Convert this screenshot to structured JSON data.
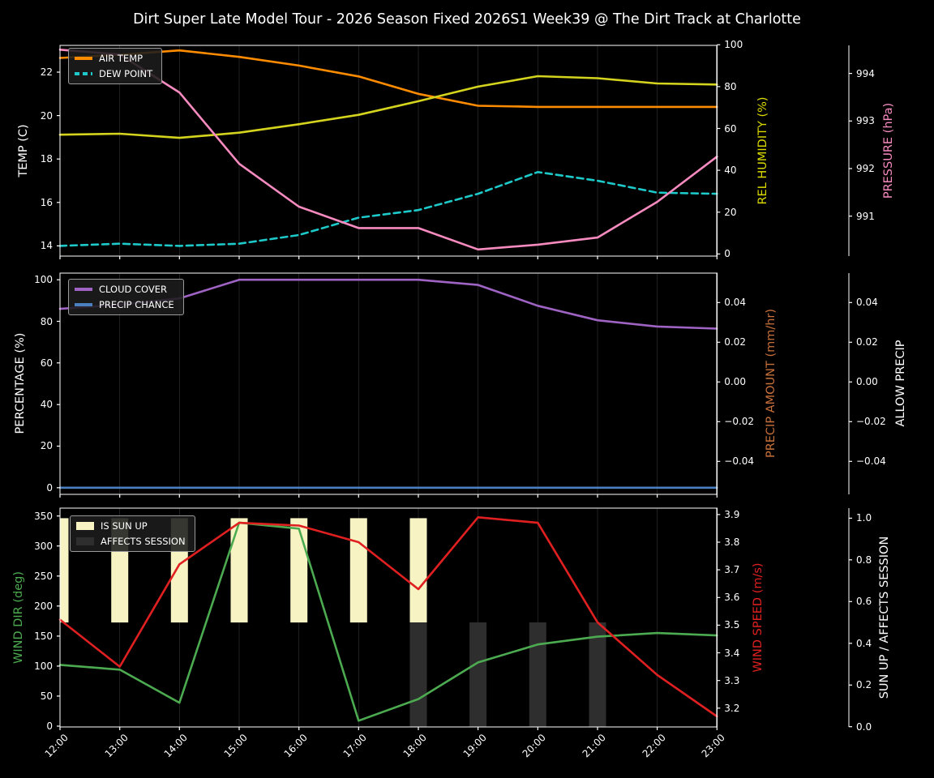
{
  "title": "Dirt Super Late Model Tour - 2026 Season Fixed 2026S1 Week39 @ The Dirt Track at Charlotte",
  "x_labels": [
    "12:00",
    "13:00",
    "14:00",
    "15:00",
    "16:00",
    "17:00",
    "18:00",
    "19:00",
    "20:00",
    "21:00",
    "22:00",
    "23:00"
  ],
  "chart_data": {
    "type": "line",
    "categories": [
      "12:00",
      "13:00",
      "14:00",
      "15:00",
      "16:00",
      "17:00",
      "18:00",
      "19:00",
      "20:00",
      "21:00",
      "22:00",
      "23:00"
    ],
    "grid": "vertical-only",
    "background": "#000000",
    "panels": [
      {
        "name": "temperature-humidity-pressure",
        "axes": {
          "left": {
            "label": "TEMP (C)",
            "color": "#ffffff",
            "ticks": [
              22,
              20,
              18,
              16,
              14
            ],
            "tick_labels": [
              "22",
              "20",
              "18",
              "16",
              "14"
            ],
            "range": [
              13.53,
              23.23
            ]
          },
          "right": {
            "label": "REL HUMIDITY (%)",
            "color": "#d9d900",
            "ticks": [
              100,
              80,
              60,
              40,
              20,
              0
            ],
            "tick_labels": [
              "100",
              "80",
              "60",
              "40",
              "20",
              "0"
            ],
            "range": [
              -1.0,
              99.7
            ]
          },
          "right2": {
            "label": "PRESSURE (hPa)",
            "color": "#f78bc0",
            "ticks": [
              994,
              993,
              992,
              991
            ],
            "tick_labels": [
              "994",
              "993",
              "992",
              "991"
            ],
            "range": [
              990.16,
              994.59
            ]
          }
        },
        "series": [
          {
            "name": "AIR TEMP",
            "axis": "left",
            "color": "#ff8c00",
            "line": "solid",
            "values": [
              22.65,
              22.8,
              23.0,
              22.7,
              22.3,
              21.8,
              21.0,
              20.45,
              20.4,
              20.4,
              20.4,
              20.4
            ]
          },
          {
            "name": "DEW POINT",
            "axis": "left",
            "color": "#1dc9c9",
            "line": "dashed",
            "values": [
              14.0,
              14.1,
              14.0,
              14.1,
              14.5,
              15.3,
              15.65,
              16.4,
              17.4,
              17.0,
              16.45,
              16.4
            ]
          },
          {
            "name": "REL HUMIDITY",
            "axis": "right",
            "color": "#d4d41f",
            "line": "solid",
            "values": [
              57,
              57.5,
              55.5,
              58,
              62,
              66.5,
              73,
              80,
              85,
              84,
              81.5,
              81
            ]
          },
          {
            "name": "PRESSURE",
            "axis": "right2",
            "color": "#f78bc0",
            "line": "solid",
            "values": [
              994.5,
              994.4,
              993.6,
              992.1,
              991.2,
              990.75,
              990.75,
              990.3,
              990.4,
              990.55,
              991.3,
              992.25
            ]
          }
        ],
        "legend": [
          {
            "label": "AIR TEMP",
            "color": "#ff8c00",
            "swatch": "line"
          },
          {
            "label": "DEW POINT",
            "color": "#1dc9c9",
            "swatch": "dash"
          }
        ]
      },
      {
        "name": "cloud-precip",
        "axes": {
          "left": {
            "label": "PERCENTAGE (%)",
            "color": "#ffffff",
            "ticks": [
              100,
              80,
              60,
              40,
              20,
              0
            ],
            "tick_labels": [
              "100",
              "80",
              "60",
              "40",
              "20",
              "0"
            ],
            "range": [
              -3.2,
              103.2
            ]
          },
          "right": {
            "label": "PRECIP AMOUNT (mm/hr)",
            "color": "#c8703a",
            "ticks": [
              0.04,
              0.02,
              0,
              -0.02,
              -0.04
            ],
            "tick_labels": [
              "0.04",
              "0.02",
              "0.00",
              "−0.02",
              "−0.04"
            ],
            "range": [
              -0.0566,
              0.0548
            ]
          },
          "right2": {
            "label": "ALLOW PRECIP",
            "color": "#ffffff",
            "ticks": [
              0.04,
              0.02,
              0,
              -0.02,
              -0.04
            ],
            "tick_labels": [
              "0.04",
              "0.02",
              "0.00",
              "−0.02",
              "−0.04"
            ],
            "range": [
              -0.0566,
              0.0548
            ]
          }
        },
        "series": [
          {
            "name": "CLOUD COVER",
            "axis": "left",
            "color": "#9f63c4",
            "line": "solid",
            "values": [
              86,
              88,
              91,
              100,
              100,
              100,
              100,
              97.5,
              87.5,
              80.5,
              77.5,
              76.5
            ]
          },
          {
            "name": "PRECIP CHANCE",
            "axis": "left",
            "color": "#4a80c0",
            "line": "solid",
            "values": [
              0,
              0,
              0,
              0,
              0,
              0,
              0,
              0,
              0,
              0,
              0,
              0
            ]
          }
        ],
        "legend": [
          {
            "label": "CLOUD COVER",
            "color": "#9f63c4",
            "swatch": "line"
          },
          {
            "label": "PRECIP CHANCE",
            "color": "#4a80c0",
            "swatch": "line"
          }
        ]
      },
      {
        "name": "wind-sun",
        "axes": {
          "left": {
            "label": "WIND DIR (deg)",
            "color": "#4cab50",
            "ticks": [
              350,
              300,
              250,
              200,
              150,
              100,
              50,
              0
            ],
            "tick_labels": [
              "350",
              "300",
              "250",
              "200",
              "150",
              "100",
              "50",
              "0"
            ],
            "range": [
              -1.4,
              363.1
            ]
          },
          "right": {
            "label": "WIND SPEED (m/s)",
            "color": "#e02020",
            "ticks": [
              3.9,
              3.8,
              3.7,
              3.6,
              3.5,
              3.4,
              3.3,
              3.2
            ],
            "tick_labels": [
              "3.9",
              "3.8",
              "3.7",
              "3.6",
              "3.5",
              "3.4",
              "3.3",
              "3.2"
            ],
            "range": [
              3.132,
              3.923
            ]
          },
          "right2": {
            "label": "SUN UP / AFFECTS SESSION",
            "color": "#ffffff",
            "ticks": [
              1.0,
              0.8,
              0.6,
              0.4,
              0.2,
              0.0
            ],
            "tick_labels": [
              "1.0",
              "0.8",
              "0.6",
              "0.4",
              "0.2",
              "0.0"
            ],
            "range": [
              -0.001,
              1.048
            ]
          }
        },
        "series": [
          {
            "name": "IS SUN UP",
            "axis": "right2",
            "type": "bar",
            "color": "#f7f3c3",
            "span": [
              0.5,
              1.0
            ],
            "values": [
              1,
              1,
              1,
              1,
              1,
              1,
              1,
              0,
              0,
              0,
              0,
              0
            ]
          },
          {
            "name": "AFFECTS SESSION",
            "axis": "right2",
            "type": "bar",
            "color": "#2e2e2e",
            "span": [
              0.0,
              0.5
            ],
            "values": [
              0,
              0,
              0,
              0,
              0,
              0,
              1,
              1,
              1,
              1,
              0,
              0
            ]
          },
          {
            "name": "WIND DIR",
            "axis": "left",
            "color": "#4cab50",
            "line": "solid",
            "values": [
              102,
              94,
              39,
              339,
              329,
              9,
              45,
              106,
              136,
              149,
              155,
              151
            ]
          },
          {
            "name": "WIND SPEED",
            "axis": "right",
            "color": "#e02020",
            "line": "solid",
            "values": [
              3.52,
              3.35,
              3.72,
              3.87,
              3.86,
              3.8,
              3.63,
              3.89,
              3.87,
              3.51,
              3.32,
              3.17
            ]
          }
        ],
        "legend": [
          {
            "label": "IS SUN UP",
            "color": "#f7f3c3",
            "swatch": "patch"
          },
          {
            "label": "AFFECTS SESSION",
            "color": "#2e2e2e",
            "swatch": "patch"
          }
        ]
      }
    ]
  }
}
